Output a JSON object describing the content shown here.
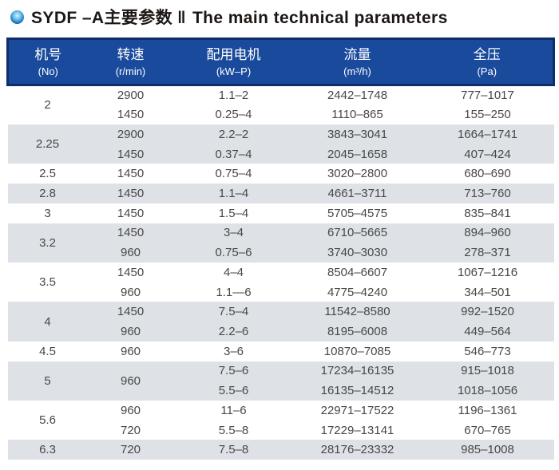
{
  "title": {
    "zh": "SYDF –A主要参数",
    "separator": "‖",
    "en": "The main technical parameters"
  },
  "table": {
    "columns": [
      {
        "zh": "机号",
        "sub": "(No)"
      },
      {
        "zh": "转速",
        "sub": "(r/min)"
      },
      {
        "zh": "配用电机",
        "sub": "(kW–P)"
      },
      {
        "zh": "流量",
        "sub": "(m³/h)"
      },
      {
        "zh": "全压",
        "sub": "(Pa)"
      }
    ],
    "groups": [
      {
        "no": "2",
        "rows": [
          [
            "2900",
            "1.1–2",
            "2442–1748",
            "777–1017"
          ],
          [
            "1450",
            "0.25–4",
            "1110–865",
            "155–250"
          ]
        ]
      },
      {
        "no": "2.25",
        "rows": [
          [
            "2900",
            "2.2–2",
            "3843–3041",
            "1664–1741"
          ],
          [
            "1450",
            "0.37–4",
            "2045–1658",
            "407–424"
          ]
        ]
      },
      {
        "no": "2.5",
        "rows": [
          [
            "1450",
            "0.75–4",
            "3020–2800",
            "680–690"
          ]
        ]
      },
      {
        "no": "2.8",
        "rows": [
          [
            "1450",
            "1.1–4",
            "4661–3711",
            "713–760"
          ]
        ]
      },
      {
        "no": "3",
        "rows": [
          [
            "1450",
            "1.5–4",
            "5705–4575",
            "835–841"
          ]
        ]
      },
      {
        "no": "3.2",
        "rows": [
          [
            "1450",
            "3–4",
            "6710–5665",
            "894–960"
          ],
          [
            "960",
            "0.75–6",
            "3740–3030",
            "278–371"
          ]
        ]
      },
      {
        "no": "3.5",
        "rows": [
          [
            "1450",
            "4–4",
            "8504–6607",
            "1067–1216"
          ],
          [
            "960",
            "1.1—6",
            "4775–4240",
            "344–501"
          ]
        ]
      },
      {
        "no": "4",
        "rows": [
          [
            "1450",
            "7.5–4",
            "11542–8580",
            "992–1520"
          ],
          [
            "960",
            "2.2–6",
            "8195–6008",
            "449–564"
          ]
        ]
      },
      {
        "no": "4.5",
        "rows": [
          [
            "960",
            "3–6",
            "10870–7085",
            "546–773"
          ]
        ]
      },
      {
        "no": "5",
        "rows": [
          [
            "960",
            "7.5–6",
            "17234–16135",
            "915–1018"
          ],
          [
            null,
            "5.5–6",
            "16135–14512",
            "1018–1056"
          ]
        ]
      },
      {
        "no": "5.6",
        "rows": [
          [
            "960",
            "11–6",
            "22971–17522",
            "1196–1361"
          ],
          [
            "720",
            "5.5–8",
            "17229–13141",
            "670–765"
          ]
        ]
      },
      {
        "no": "6.3",
        "rows": [
          [
            "720",
            "7.5–8",
            "28176–23332",
            "985–1008"
          ]
        ]
      }
    ]
  },
  "colors": {
    "header_bg": "#1a4a9c",
    "header_border": "#0e2d6a",
    "band_gray": "#dee2e6",
    "body_text": "#474747",
    "header_text": "#ffffff"
  }
}
